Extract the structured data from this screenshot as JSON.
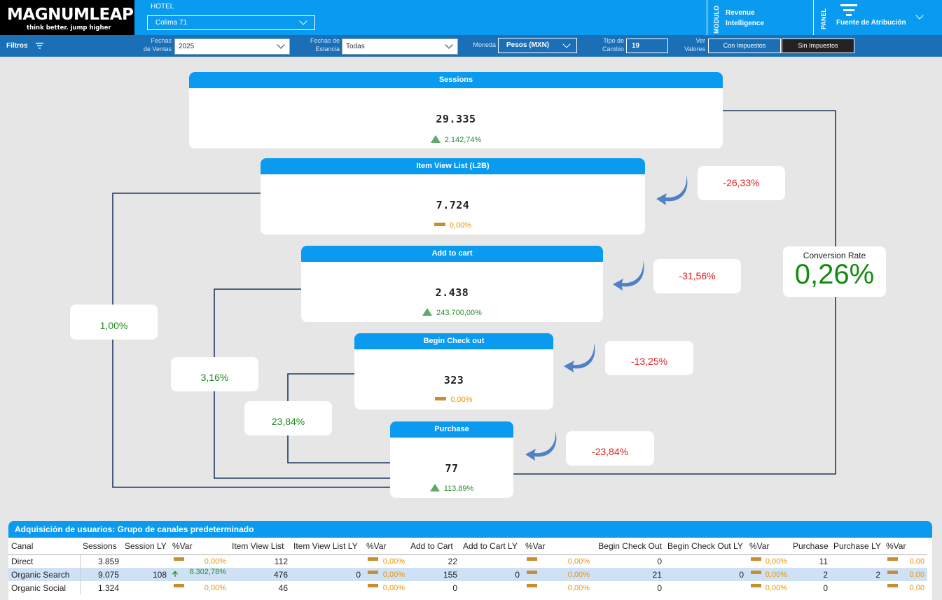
{
  "header": {
    "logo_text": "MAGNUMLEAP",
    "logo_tagline": "think better. jump higher",
    "hotel_label": "HOTEL",
    "hotel_value": "Colima 71",
    "modulo_label": "MODULO",
    "modulo_line1": "Revenue",
    "modulo_line2": "Intelligence",
    "panel_label": "PANEL",
    "panel_title": "Fuente de Atribución"
  },
  "filters": {
    "title": "Filtros",
    "fechas_ventas_label_1": "Fechas",
    "fechas_ventas_label_2": "de Ventas",
    "fechas_ventas_value": "2025",
    "fechas_estancia_label_1": "Fechas de",
    "fechas_estancia_label_2": "Estancia",
    "fechas_estancia_value": "Todas",
    "moneda_label": "Moneda",
    "moneda_value": "Pesos (MXN)",
    "tipo_cambio_label_1": "Tipo de",
    "tipo_cambio_label_2": "Cambio",
    "tipo_cambio_value": "19",
    "ver_valores_label_1": "Ver",
    "ver_valores_label_2": "Valores",
    "con_impuestos": "Con Impuestos",
    "sin_impuestos": "Sin Impuestos"
  },
  "funnel": {
    "sessions": {
      "title": "Sessions",
      "value": "29.335",
      "var": "2.142,74%",
      "trend": "up"
    },
    "item_view": {
      "title": "Item View List (L2B)",
      "value": "7.724",
      "var": "0,00%",
      "trend": "flat"
    },
    "add_to_cart": {
      "title": "Add to cart",
      "value": "2.438",
      "var": "243.700,00%",
      "trend": "up"
    },
    "begin_checkout": {
      "title": "Begin Check out",
      "value": "323",
      "var": "0,00%",
      "trend": "flat"
    },
    "purchase": {
      "title": "Purchase",
      "value": "77",
      "var": "113,89%",
      "trend": "up"
    },
    "drop_item_view": "-26,33%",
    "drop_add_to_cart": "-31,56%",
    "drop_begin_checkout": "-13,25%",
    "drop_purchase": "-23,84%",
    "rate_sessions_purchase": "1,00%",
    "rate_item_purchase": "3,16%",
    "rate_cart_purchase": "23,84%",
    "conversion_rate_label": "Conversion Rate",
    "conversion_rate_value": "0,26%"
  },
  "table": {
    "title": "Adquisición de usuarios: Grupo de canales predeterminado",
    "columns": [
      "Canal",
      "Sessions",
      "Session LY",
      "%Var",
      "Item View List",
      "Item View List LY",
      "%Var",
      "Add to Cart",
      "Add to Cart LY",
      "%Var",
      "Begin Check Out",
      "Begin Check Out LY",
      "%Var",
      "Purchase",
      "Purchase LY",
      "%Var"
    ],
    "rows": [
      {
        "canal": "Direct",
        "sessions": "3.859",
        "session_ly": "",
        "sessions_var": "0,00%",
        "item_view": "112",
        "item_view_ly": "",
        "item_view_var": "0,00%",
        "add_cart": "22",
        "add_cart_ly": "",
        "add_cart_var": "0,00%",
        "begin": "0",
        "begin_ly": "",
        "begin_var": "0,00%",
        "purchase": "11",
        "purchase_ly": "",
        "purchase_var": "0,00"
      },
      {
        "canal": "Organic Search",
        "sessions": "9.075",
        "session_ly": "108",
        "sessions_var": "8.302,78%",
        "item_view": "476",
        "item_view_ly": "0",
        "item_view_var": "0,00%",
        "add_cart": "155",
        "add_cart_ly": "0",
        "add_cart_var": "0,00%",
        "begin": "21",
        "begin_ly": "0",
        "begin_var": "0,00%",
        "purchase": "2",
        "purchase_ly": "2",
        "purchase_var": "0,00"
      },
      {
        "canal": "Organic Social",
        "sessions": "1.324",
        "session_ly": "",
        "sessions_var": "0,00%",
        "item_view": "46",
        "item_view_ly": "",
        "item_view_var": "0,00%",
        "add_cart": "0",
        "add_cart_ly": "",
        "add_cart_var": "0,00%",
        "begin": "0",
        "begin_ly": "",
        "begin_var": "0,00%",
        "purchase": "0",
        "purchase_ly": "",
        "purchase_var": "0,00"
      }
    ]
  },
  "colors": {
    "brand_blue": "#0a9bf0",
    "filter_bar": "#1a6fb7",
    "negative": "#e02020",
    "positive": "#1e8a1e",
    "neutral": "#e8960c"
  }
}
